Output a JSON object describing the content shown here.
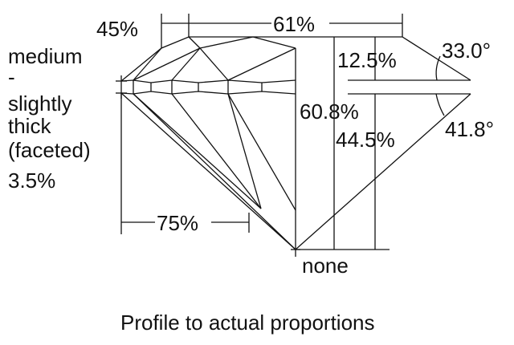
{
  "labels": {
    "crown_angle_pct": "45%",
    "table": "61%",
    "girdle_lines": [
      "medium",
      "-",
      "slightly",
      "thick",
      "(faceted)",
      "3.5%"
    ],
    "crown_height": "12.5%",
    "crown_angle": "33.0°",
    "total_depth": "60.8%",
    "pavilion_depth": "44.5%",
    "pavilion_angle": "41.8°",
    "lower_half": "75%",
    "culet": "none"
  },
  "caption": "Profile to actual proportions"
}
